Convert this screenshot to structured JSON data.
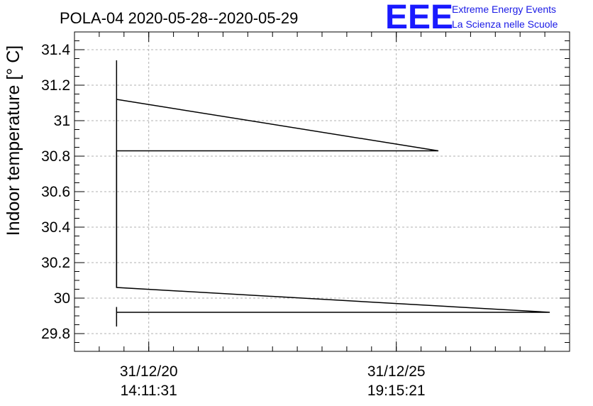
{
  "chart_data": {
    "type": "line",
    "title": "POLA-04 2020-05-28--2020-05-29",
    "ylabel": "Indoor temperature [° C]",
    "xlabel": "",
    "ylim": [
      29.7,
      31.5
    ],
    "yticks": [
      29.8,
      30,
      30.2,
      30.4,
      30.6,
      30.8,
      31,
      31.2,
      31.4
    ],
    "ytick_labels": [
      "29.8",
      "30",
      "30.2",
      "30.4",
      "30.6",
      "30.8",
      "31",
      "31.2",
      "31.4"
    ],
    "x_range": [
      0,
      10
    ],
    "xticks": [
      {
        "x": 1.5,
        "line1": "31/12/20",
        "line2": "14:11:31"
      },
      {
        "x": 6.5,
        "line1": "31/12/25",
        "line2": "19:15:21"
      }
    ],
    "grid": true,
    "series": [
      {
        "values": [
          {
            "x": 0.85,
            "y": 31.12
          },
          {
            "x": 7.35,
            "y": 30.83
          },
          {
            "x": 0.85,
            "y": 30.83
          },
          {
            "x": 0.85,
            "y": 30.06
          },
          {
            "x": 9.6,
            "y": 29.92
          },
          {
            "x": 0.85,
            "y": 29.92
          }
        ]
      }
    ],
    "verticals": [
      {
        "x": 0.85,
        "y0": 30.06,
        "y1": 31.34
      },
      {
        "x": 0.85,
        "y0": 29.84,
        "y1": 29.95
      }
    ]
  },
  "logo": {
    "mark": "EEE",
    "line1": "Extreme Energy Events",
    "line2": "La Scienza nelle Scuole",
    "color": "#1a1aff"
  },
  "colors": {
    "line": "#000000",
    "grid": "#b0b0b0",
    "axis": "#000000"
  }
}
